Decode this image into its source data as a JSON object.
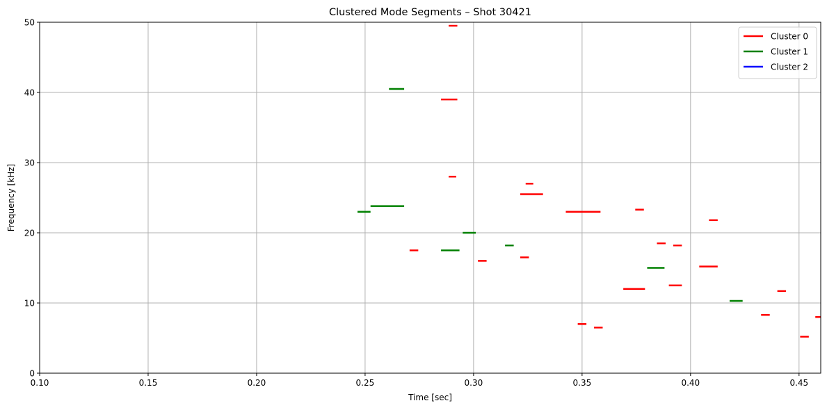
{
  "chart_data": {
    "type": "line",
    "title": "Clustered Mode Segments – Shot 30421",
    "xlabel": "Time [sec]",
    "ylabel": "Frequency [kHz]",
    "xlim": [
      0.1,
      0.46
    ],
    "ylim": [
      0,
      50
    ],
    "xticks": [
      0.1,
      0.15,
      0.2,
      0.25,
      0.3,
      0.35,
      0.4,
      0.45
    ],
    "xtick_labels": [
      "0.10",
      "0.15",
      "0.20",
      "0.25",
      "0.30",
      "0.35",
      "0.40",
      "0.45"
    ],
    "yticks": [
      0,
      10,
      20,
      30,
      40,
      50
    ],
    "ytick_labels": [
      "0",
      "10",
      "20",
      "30",
      "40",
      "50"
    ],
    "grid": true,
    "legend_position": "top-right",
    "series": [
      {
        "name": "Cluster 0",
        "color": "#ff0000",
        "segments": [
          {
            "t0": 0.2885,
            "t1": 0.2925,
            "f": 49.5
          },
          {
            "t0": 0.285,
            "t1": 0.2925,
            "f": 39.0
          },
          {
            "t0": 0.2885,
            "t1": 0.292,
            "f": 28.0
          },
          {
            "t0": 0.2705,
            "t1": 0.2745,
            "f": 17.5
          },
          {
            "t0": 0.302,
            "t1": 0.306,
            "f": 16.0
          },
          {
            "t0": 0.324,
            "t1": 0.3275,
            "f": 27.0
          },
          {
            "t0": 0.3215,
            "t1": 0.332,
            "f": 25.5
          },
          {
            "t0": 0.3215,
            "t1": 0.3255,
            "f": 16.5
          },
          {
            "t0": 0.3425,
            "t1": 0.3585,
            "f": 23.0
          },
          {
            "t0": 0.348,
            "t1": 0.352,
            "f": 7.0
          },
          {
            "t0": 0.3555,
            "t1": 0.3595,
            "f": 6.5
          },
          {
            "t0": 0.3745,
            "t1": 0.3785,
            "f": 23.3
          },
          {
            "t0": 0.369,
            "t1": 0.379,
            "f": 12.0
          },
          {
            "t0": 0.3845,
            "t1": 0.3885,
            "f": 18.5
          },
          {
            "t0": 0.392,
            "t1": 0.396,
            "f": 18.2
          },
          {
            "t0": 0.39,
            "t1": 0.396,
            "f": 12.5
          },
          {
            "t0": 0.4085,
            "t1": 0.4125,
            "f": 21.8
          },
          {
            "t0": 0.404,
            "t1": 0.4125,
            "f": 15.2
          },
          {
            "t0": 0.4325,
            "t1": 0.4365,
            "f": 8.3
          },
          {
            "t0": 0.44,
            "t1": 0.444,
            "f": 11.7
          },
          {
            "t0": 0.4505,
            "t1": 0.4545,
            "f": 5.2
          },
          {
            "t0": 0.4575,
            "t1": 0.46,
            "f": 8.0
          }
        ]
      },
      {
        "name": "Cluster 1",
        "color": "#008000",
        "segments": [
          {
            "t0": 0.261,
            "t1": 0.268,
            "f": 40.5
          },
          {
            "t0": 0.2465,
            "t1": 0.2525,
            "f": 23.0
          },
          {
            "t0": 0.2525,
            "t1": 0.268,
            "f": 23.8
          },
          {
            "t0": 0.285,
            "t1": 0.2935,
            "f": 17.5
          },
          {
            "t0": 0.295,
            "t1": 0.301,
            "f": 20.0
          },
          {
            "t0": 0.3145,
            "t1": 0.3185,
            "f": 18.2
          },
          {
            "t0": 0.38,
            "t1": 0.388,
            "f": 15.0
          },
          {
            "t0": 0.418,
            "t1": 0.424,
            "f": 10.3
          }
        ]
      },
      {
        "name": "Cluster 2",
        "color": "#0000ff",
        "segments": []
      }
    ]
  }
}
